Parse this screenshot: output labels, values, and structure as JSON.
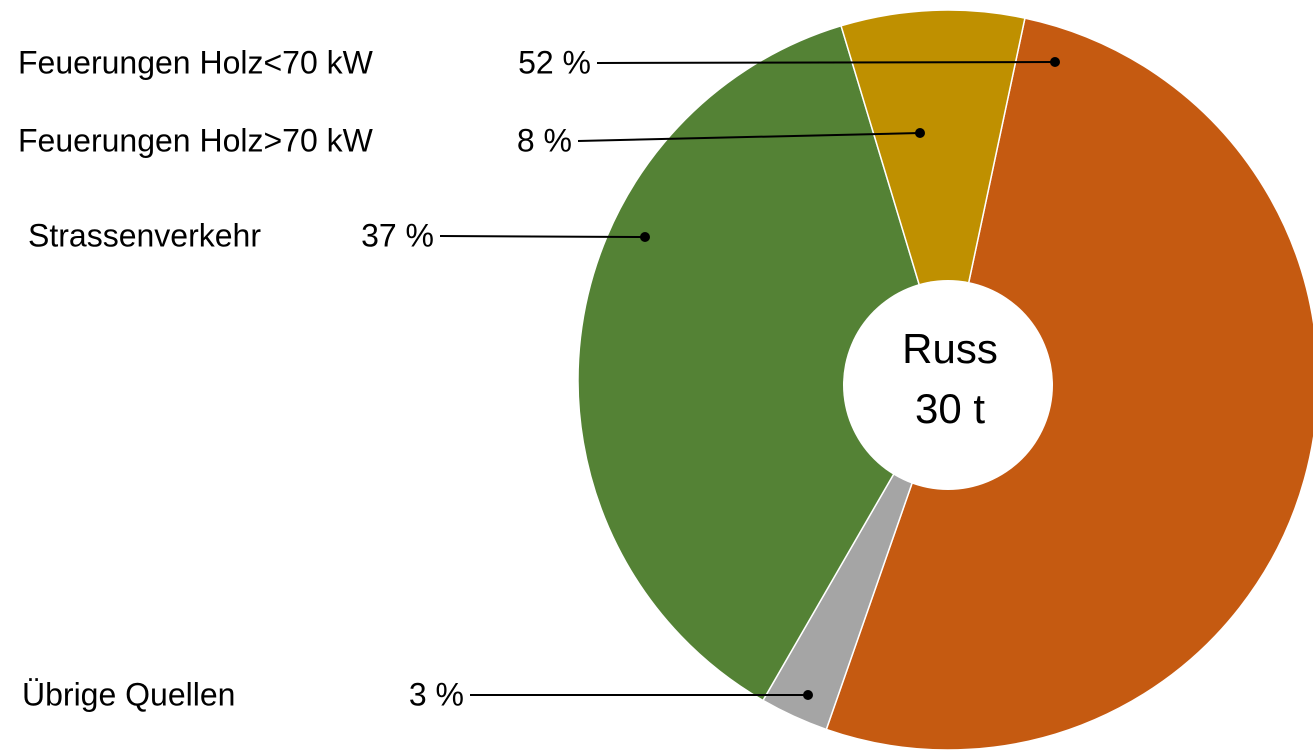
{
  "chart_data": {
    "type": "donut",
    "categories": [
      "Feuerungen Holz<70 kW",
      "Übrige Quellen",
      "Strassenverkehr",
      "Feuerungen Holz>70 kW"
    ],
    "values": [
      52,
      3,
      37,
      8
    ],
    "value_labels": [
      "52 %",
      "3 %",
      "37 %",
      "8 %"
    ],
    "colors": [
      "#c55a11",
      "#a5a5a5",
      "#548235",
      "#bf9000"
    ],
    "center_label": [
      "Russ",
      "30 t"
    ]
  }
}
